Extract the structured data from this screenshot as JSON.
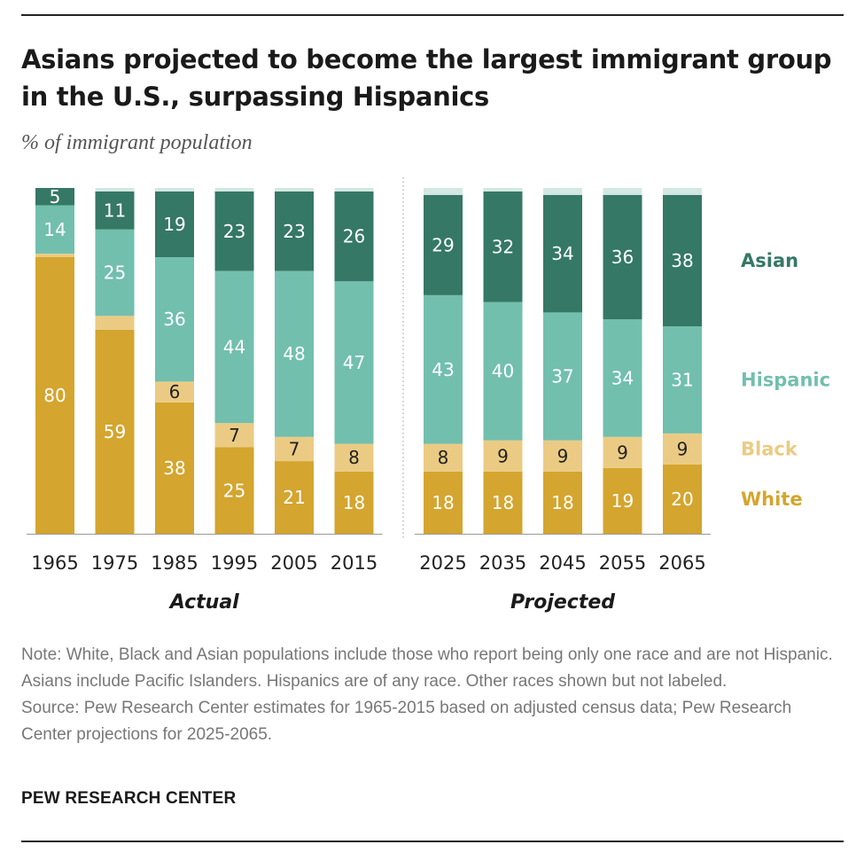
{
  "title": "Asians projected to become the largest immigrant group in the U.S., surpassing Hispanics",
  "subtitle": "% of immigrant population",
  "note": "Note: White, Black and Asian populations include those who report being only one race and are not Hispanic. Asians include Pacific Islanders. Hispanics are of any race. Other races shown but not labeled.",
  "source": "Source: Pew Research Center estimates for 1965-2015 based on adjusted census data; Pew Research Center projections for 2025-2065.",
  "brand": "PEW RESEARCH CENTER",
  "colors": {
    "white": "#D4A52F",
    "black": "#EBCB83",
    "hispanic": "#72BFAE",
    "asian": "#357865",
    "other": "#D3E8E2"
  },
  "chart_data": {
    "type": "bar",
    "stacked": true,
    "ylim": [
      0,
      100
    ],
    "grid": false,
    "legend_position": "right",
    "groups": [
      {
        "label": "Actual",
        "categories": [
          "1965",
          "1975",
          "1985",
          "1995",
          "2005",
          "2015"
        ]
      },
      {
        "label": "Projected",
        "categories": [
          "2025",
          "2035",
          "2045",
          "2055",
          "2065"
        ]
      }
    ],
    "categories": [
      "1965",
      "1975",
      "1985",
      "1995",
      "2005",
      "2015",
      "2025",
      "2035",
      "2045",
      "2055",
      "2065"
    ],
    "series": [
      {
        "name": "White",
        "key": "white",
        "values": [
          80,
          59,
          38,
          25,
          21,
          18,
          18,
          18,
          18,
          19,
          20
        ],
        "labeled": true
      },
      {
        "name": "Black",
        "key": "black",
        "values": [
          1,
          4,
          6,
          7,
          7,
          8,
          8,
          9,
          9,
          9,
          9
        ],
        "labeled": true,
        "label_from_index": 2
      },
      {
        "name": "Hispanic",
        "key": "hispanic",
        "values": [
          14,
          25,
          36,
          44,
          48,
          47,
          43,
          40,
          37,
          34,
          31
        ],
        "labeled": true
      },
      {
        "name": "Asian",
        "key": "asian",
        "values": [
          5,
          11,
          19,
          23,
          23,
          26,
          29,
          32,
          34,
          36,
          38
        ],
        "labeled": true
      },
      {
        "name": "",
        "key": "other",
        "values": [
          0,
          1,
          1,
          1,
          1,
          1,
          2,
          1,
          2,
          2,
          2
        ],
        "labeled": false
      }
    ],
    "legend": [
      "Asian",
      "Hispanic",
      "Black",
      "White"
    ]
  }
}
